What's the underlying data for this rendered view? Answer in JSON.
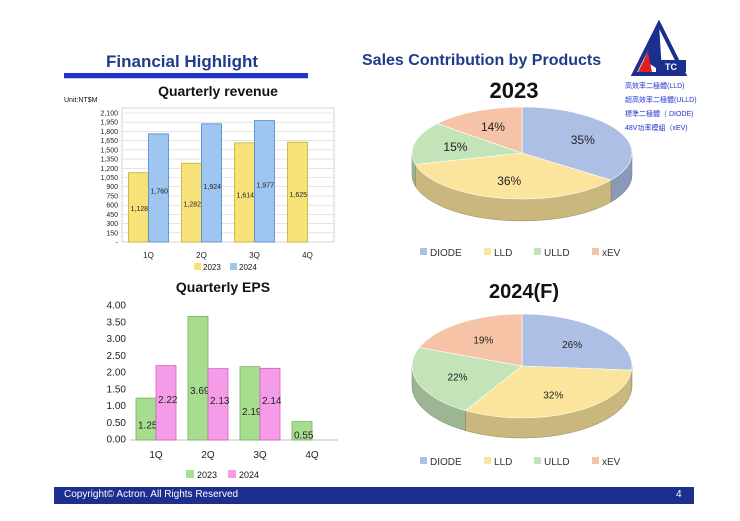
{
  "headings": {
    "financial": "Financial Highlight",
    "sales": "Sales Contribution by Products"
  },
  "logo": {
    "text": "TC"
  },
  "product_legend": [
    "高效率二極體(LLD)",
    "超高效率二極體(ULLD)",
    "標準二極體（ DIODE)",
    "48V功率模組（xEV)"
  ],
  "footer": {
    "copyright": "Copyright© Actron. All Rights Reserved",
    "page": "4"
  },
  "colors": {
    "series_2023_bar": "#f7e27a",
    "series_2024_bar": "#9ec6f0",
    "eps_2023": "#a8dc8f",
    "eps_2024": "#f59ce8",
    "diode": "#aebfe6",
    "lld": "#fbe59c",
    "ulld": "#c3e3b8",
    "xev": "#f6c3a6",
    "brand": "#1c2f8e"
  },
  "chart_data": [
    {
      "id": "revenue",
      "type": "bar",
      "title": "Quarterly  revenue",
      "unit_label": "Unit:NT$M",
      "categories": [
        "1Q",
        "2Q",
        "3Q",
        "4Q"
      ],
      "series": [
        {
          "name": "2023",
          "values": [
            1128,
            1282,
            1614,
            1625
          ],
          "labels": [
            "1,128",
            "1,282",
            "1,614",
            "1,625"
          ]
        },
        {
          "name": "2024",
          "values": [
            1760,
            1924,
            1977,
            null
          ],
          "labels": [
            "1,760",
            "1,924",
            "1,977",
            ""
          ]
        }
      ],
      "yticks": [
        0,
        150,
        300,
        450,
        600,
        750,
        900,
        1050,
        1200,
        1350,
        1500,
        1650,
        1800,
        1950,
        2100
      ],
      "ytick_labels": [
        "-",
        "150",
        "300",
        "450",
        "600",
        "750",
        "900",
        "1,050",
        "1,200",
        "1,350",
        "1,500",
        "1,650",
        "1,800",
        "1,950",
        "2,100"
      ],
      "ylim": [
        0,
        2100
      ],
      "grid": true,
      "legend": "bottom"
    },
    {
      "id": "eps",
      "type": "bar",
      "title": "Quarterly EPS",
      "categories": [
        "1Q",
        "2Q",
        "3Q",
        "4Q"
      ],
      "series": [
        {
          "name": "2023",
          "values": [
            1.25,
            3.69,
            2.19,
            0.55
          ],
          "labels": [
            "1.25",
            "3.69",
            "2.19",
            "0.55"
          ]
        },
        {
          "name": "2024",
          "values": [
            2.22,
            2.13,
            2.14,
            null
          ],
          "labels": [
            "2.22",
            "2.13",
            "2.14",
            ""
          ]
        }
      ],
      "yticks": [
        0,
        0.5,
        1,
        1.5,
        2,
        2.5,
        3,
        3.5,
        4
      ],
      "ytick_labels": [
        "0.00",
        "0.50",
        "1.00",
        "1.50",
        "2.00",
        "2.50",
        "3.00",
        "3.50",
        "4.00"
      ],
      "ylim": [
        0,
        4
      ],
      "grid": false,
      "legend": "bottom"
    },
    {
      "id": "pie2023",
      "type": "pie",
      "title": "2023",
      "slices": [
        {
          "name": "DIODE",
          "value": 35,
          "label": "35%"
        },
        {
          "name": "LLD",
          "value": 36,
          "label": "36%"
        },
        {
          "name": "ULLD",
          "value": 15,
          "label": "15%"
        },
        {
          "name": "xEV",
          "value": 14,
          "label": "14%"
        }
      ],
      "legend": "bottom"
    },
    {
      "id": "pie2024",
      "type": "pie",
      "title": "2024(F)",
      "slices": [
        {
          "name": "DIODE",
          "value": 26,
          "label": "26%"
        },
        {
          "name": "LLD",
          "value": 32,
          "label": "32%"
        },
        {
          "name": "ULLD",
          "value": 22,
          "label": "22%"
        },
        {
          "name": "xEV",
          "value": 19,
          "label": "19%"
        }
      ],
      "legend": "bottom"
    }
  ]
}
